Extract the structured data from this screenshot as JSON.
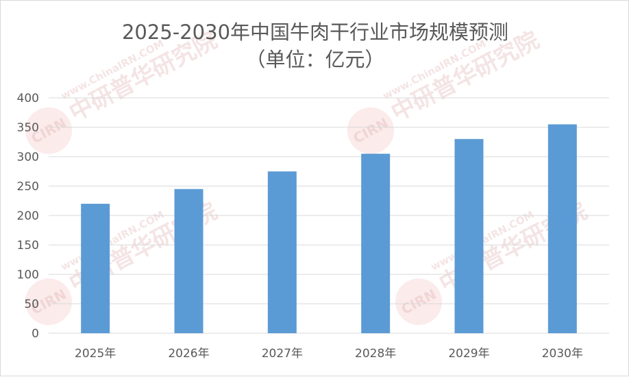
{
  "chart_data": {
    "type": "bar",
    "title": "2025-2030年中国牛肉干行业市场规模预测",
    "subtitle": "（单位：亿元）",
    "categories": [
      "2025年",
      "2026年",
      "2027年",
      "2028年",
      "2029年",
      "2030年"
    ],
    "values": [
      220,
      245,
      275,
      305,
      330,
      355
    ],
    "ylim": [
      0,
      400
    ],
    "yticks": [
      "0",
      "50",
      "100",
      "150",
      "200",
      "250",
      "300",
      "350",
      "400"
    ],
    "xlabel": "",
    "ylabel": "",
    "grid": true,
    "bar_color": "#5b9bd5"
  },
  "watermark": {
    "brand": "中研普华研究院",
    "url": "www.ChinaIRN.COM",
    "logo": "CIRN"
  }
}
